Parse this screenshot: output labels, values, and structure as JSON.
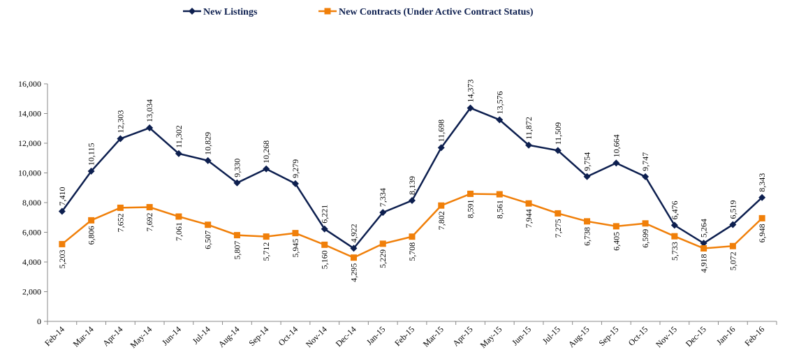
{
  "chart_data": {
    "type": "line",
    "categories": [
      "Feb-14",
      "Mar-14",
      "Apr-14",
      "May-14",
      "Jun-14",
      "Jul-14",
      "Aug-14",
      "Sep-14",
      "Oct-14",
      "Nov-14",
      "Dec-14",
      "Jan-15",
      "Feb-15",
      "Mar-15",
      "Apr-15",
      "May-15",
      "Jun-15",
      "Jul-15",
      "Aug-15",
      "Sep-15",
      "Oct-15",
      "Nov-15",
      "Dec-15",
      "Jan-16",
      "Feb-16"
    ],
    "series": [
      {
        "name": "New Listings",
        "color": "#0d1f4f",
        "marker": "diamond",
        "values": [
          7410,
          10115,
          12303,
          13034,
          11302,
          10829,
          9330,
          10268,
          9279,
          6221,
          4922,
          7334,
          8139,
          11698,
          14373,
          13576,
          11872,
          11509,
          9754,
          10664,
          9747,
          6476,
          5264,
          6519,
          8343
        ],
        "value_labels": [
          "7,410",
          "10,115",
          "12,303",
          "13,034",
          "11,302",
          "10,829",
          "9,330",
          "10,268",
          "9,279",
          "6,221",
          "4,922",
          "7,334",
          "8,139",
          "11,698",
          "14,373",
          "13,576",
          "11,872",
          "11,509",
          "9,754",
          "10,664",
          "9,747",
          "6,476",
          "5,264",
          "6,519",
          "8,343"
        ]
      },
      {
        "name": "New Contracts (Under Active Contract Status)",
        "color": "#f07f09",
        "marker": "square",
        "values": [
          5203,
          6806,
          7652,
          7692,
          7061,
          6507,
          5807,
          5712,
          5945,
          5160,
          4295,
          5229,
          5708,
          7802,
          8591,
          8561,
          7944,
          7275,
          6738,
          6405,
          6599,
          5733,
          4918,
          5072,
          6948
        ],
        "value_labels": [
          "5,203",
          "6,806",
          "7,652",
          "7,692",
          "7,061",
          "6,507",
          "5,807",
          "5,712",
          "5,945",
          "5,160",
          "4,295",
          "5,229",
          "5,708",
          "7,802",
          "8,591",
          "8,561",
          "7,944",
          "7,275",
          "6,738",
          "6,405",
          "6,599",
          "5,733",
          "4,918",
          "5,072",
          "6,948"
        ]
      }
    ],
    "ylim": [
      0,
      16000
    ],
    "yticks": [
      0,
      {
        "value": 2000,
        "label": "2,000"
      },
      {
        "value": 4000,
        "label": "4,000"
      },
      {
        "value": 6000,
        "label": "6,000"
      },
      {
        "value": 8000,
        "label": "8,000"
      },
      {
        "value": 10000,
        "label": "10,000"
      },
      {
        "value": 12000,
        "label": "12,000"
      },
      {
        "value": 14000,
        "label": "14,000"
      },
      {
        "value": 16000,
        "label": "16,000"
      }
    ],
    "grid": false,
    "legend": "top"
  }
}
